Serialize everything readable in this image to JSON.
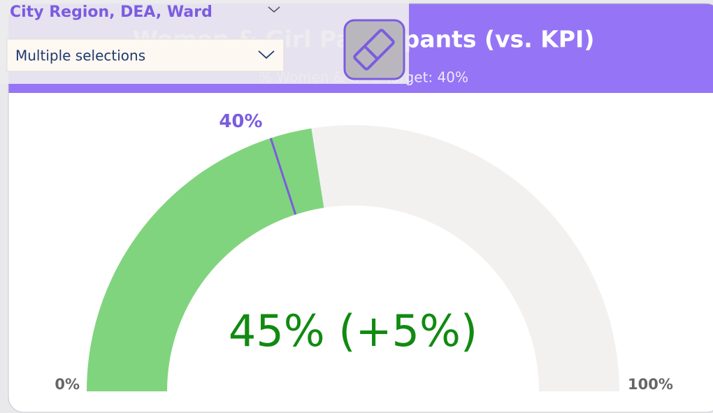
{
  "chart_data": {
    "type": "gauge",
    "title": "Women & Girl Participants (vs. KPI)",
    "subtitle": "% Women & Girls Target: 40%",
    "value": 45,
    "value_label": "45% (+5%)",
    "color": "#81d47e",
    "target": 40,
    "target_label": "40%",
    "target_color": "#7b5ce0",
    "track_color": "#f2f1f0",
    "label_color": "#118a11",
    "ylim": [
      0,
      100
    ],
    "yticks": [
      {
        "value": 0,
        "label": "0%"
      },
      {
        "value": 100,
        "label": "100%"
      }
    ]
  },
  "slicer": {
    "header": "City Region, DEA, Ward",
    "selection": "Multiple selections"
  }
}
